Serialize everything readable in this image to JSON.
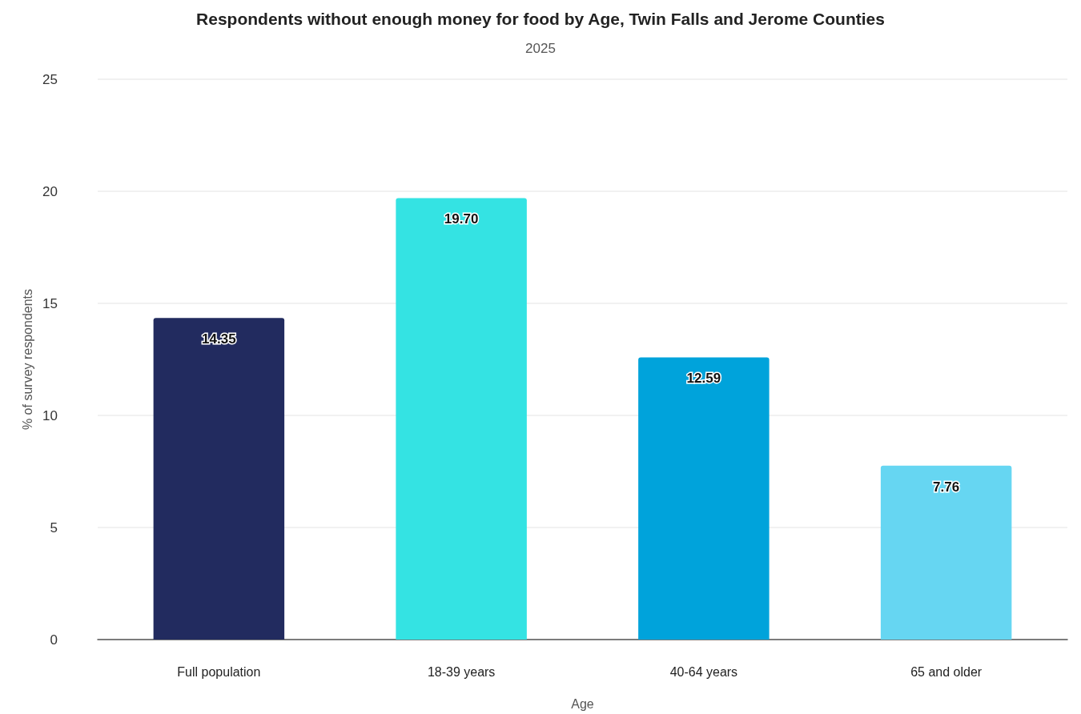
{
  "chart_data": {
    "type": "bar",
    "title": "Respondents without enough money for food by Age, Twin Falls and Jerome Counties",
    "subtitle": "2025",
    "xlabel": "Age",
    "ylabel": "% of survey respondents",
    "categories": [
      "Full population",
      "18-39 years",
      "40-64 years",
      "65 and older"
    ],
    "values": [
      14.35,
      19.7,
      12.59,
      7.76
    ],
    "value_labels": [
      "14.35",
      "19.70",
      "12.59",
      "7.76"
    ],
    "colors": [
      "#222b5f",
      "#34e3e3",
      "#00a3db",
      "#66d6f2"
    ],
    "ylim": [
      0,
      25
    ],
    "yticks": [
      0,
      5,
      10,
      15,
      20,
      25
    ],
    "grid": "y"
  }
}
